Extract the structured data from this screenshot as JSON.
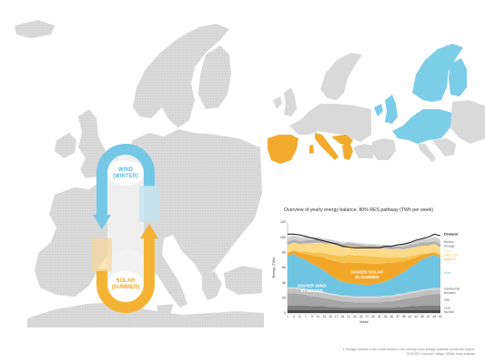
{
  "main_map": {
    "wind_label": [
      "WIND",
      "(WINTER)"
    ],
    "solar_label": [
      "SOLAR",
      "(SUMMER)"
    ],
    "colors": {
      "land": "#d7d7d7",
      "wind": "#6cc3e3",
      "solar": "#f5b335"
    }
  },
  "small_maps": {
    "south_color": "#f2ab2c",
    "north_color": "#7ccde8"
  },
  "chart_title": "Overview of yearly energy balance, 80% RES pathway (TWh per week)",
  "footnote": [
    "1 Storage included in the model relates to the existing hydro storage available across the regions",
    "SOURCE: Imperial College, KEMA, team analysis"
  ],
  "chart_data": {
    "type": "area",
    "title": "Overview of yearly energy balance, 80% RES pathway (TWh per week)",
    "xlabel": "Week",
    "ylabel": "Energy (TWh)",
    "ylim": [
      0,
      120
    ],
    "yticks": [
      0,
      20,
      40,
      60,
      80,
      100,
      120
    ],
    "x": [
      1,
      3,
      5,
      7,
      9,
      11,
      13,
      15,
      17,
      19,
      21,
      23,
      25,
      27,
      29,
      31,
      33,
      35,
      37,
      39,
      41,
      43,
      45,
      47,
      49,
      51
    ],
    "series": [
      {
        "name": "Nuclear",
        "color": "#4a4a4a",
        "values": [
          4,
          4,
          4,
          4,
          4,
          4,
          4,
          4,
          4,
          4,
          4,
          4,
          4,
          4,
          4,
          4,
          4,
          4,
          4,
          4,
          4,
          4,
          4,
          4,
          4,
          4
        ]
      },
      {
        "name": "Coal",
        "color": "#7c7c7c",
        "values": [
          6,
          6,
          6,
          6,
          5,
          5,
          5,
          4,
          4,
          3,
          3,
          3,
          3,
          3,
          3,
          3,
          3,
          3,
          4,
          4,
          5,
          5,
          6,
          6,
          6,
          6
        ]
      },
      {
        "name": "Gas",
        "color": "#a5a5a5",
        "values": [
          16,
          16,
          15,
          14,
          13,
          12,
          11,
          10,
          9,
          8,
          8,
          7,
          7,
          7,
          7,
          7,
          8,
          8,
          9,
          10,
          11,
          12,
          13,
          14,
          15,
          15
        ]
      },
      {
        "name": "Biomass",
        "color": "#c1c1c1",
        "values": [
          6,
          6,
          6,
          6,
          6,
          6,
          6,
          6,
          6,
          6,
          6,
          6,
          6,
          6,
          6,
          6,
          6,
          6,
          6,
          6,
          6,
          6,
          6,
          6,
          6,
          6
        ]
      },
      {
        "name": "Geothermal",
        "color": "#d9d9d9",
        "values": [
          2,
          2,
          2,
          2,
          2,
          2,
          2,
          2,
          2,
          2,
          2,
          2,
          2,
          2,
          2,
          2,
          2,
          2,
          2,
          2,
          2,
          2,
          2,
          2,
          2,
          2
        ]
      },
      {
        "name": "Wind",
        "color": "#6fc4e2",
        "values": [
          42,
          44,
          40,
          38,
          35,
          32,
          28,
          24,
          20,
          18,
          17,
          16,
          16,
          15,
          16,
          17,
          19,
          22,
          25,
          28,
          32,
          36,
          40,
          42,
          44,
          40
        ]
      },
      {
        "name": "Solar PV",
        "color": "#f2a628",
        "values": [
          3,
          4,
          6,
          8,
          11,
          14,
          17,
          20,
          23,
          25,
          27,
          28,
          28,
          28,
          27,
          26,
          24,
          21,
          18,
          14,
          11,
          8,
          6,
          4,
          3,
          3
        ]
      },
      {
        "name": "Solar CSP",
        "color": "#f7c24e",
        "values": [
          1,
          1,
          2,
          3,
          4,
          5,
          6,
          7,
          8,
          9,
          10,
          10,
          10,
          10,
          10,
          9,
          8,
          7,
          6,
          5,
          4,
          3,
          2,
          1,
          1,
          1
        ]
      },
      {
        "name": "Hydro",
        "color": "#fbdb8a",
        "values": [
          10,
          10,
          10,
          11,
          12,
          13,
          13,
          14,
          14,
          13,
          12,
          12,
          11,
          11,
          11,
          11,
          11,
          11,
          11,
          11,
          11,
          11,
          10,
          10,
          10,
          10
        ]
      },
      {
        "name": "Storage",
        "color": "#b0b0b0",
        "values": [
          4,
          4,
          4,
          4,
          4,
          4,
          3,
          3,
          3,
          3,
          3,
          3,
          3,
          3,
          3,
          3,
          3,
          3,
          3,
          3,
          4,
          4,
          4,
          4,
          4,
          4
        ]
      },
      {
        "name": "Backup",
        "color": "#d0d0d0",
        "values": [
          6,
          5,
          5,
          4,
          4,
          3,
          3,
          3,
          2,
          2,
          2,
          2,
          2,
          2,
          2,
          2,
          2,
          2,
          2,
          3,
          3,
          4,
          4,
          5,
          6,
          6
        ]
      }
    ],
    "demand": {
      "name": "Demand",
      "color": "#222222",
      "values": [
        104,
        104,
        103,
        101,
        99,
        97,
        95,
        93,
        91,
        88,
        87,
        86,
        86,
        86,
        86,
        86,
        88,
        88,
        90,
        91,
        93,
        96,
        98,
        100,
        104,
        102
      ]
    },
    "annotations": [
      {
        "text": [
          "HIGHER WIND",
          "IN WINTER"
        ],
        "color": "#ffffff"
      },
      {
        "text": [
          "HIGHER SOLAR",
          "IN SUMMER"
        ],
        "color": "#ffffff"
      }
    ],
    "legend": "right",
    "grid": false
  }
}
